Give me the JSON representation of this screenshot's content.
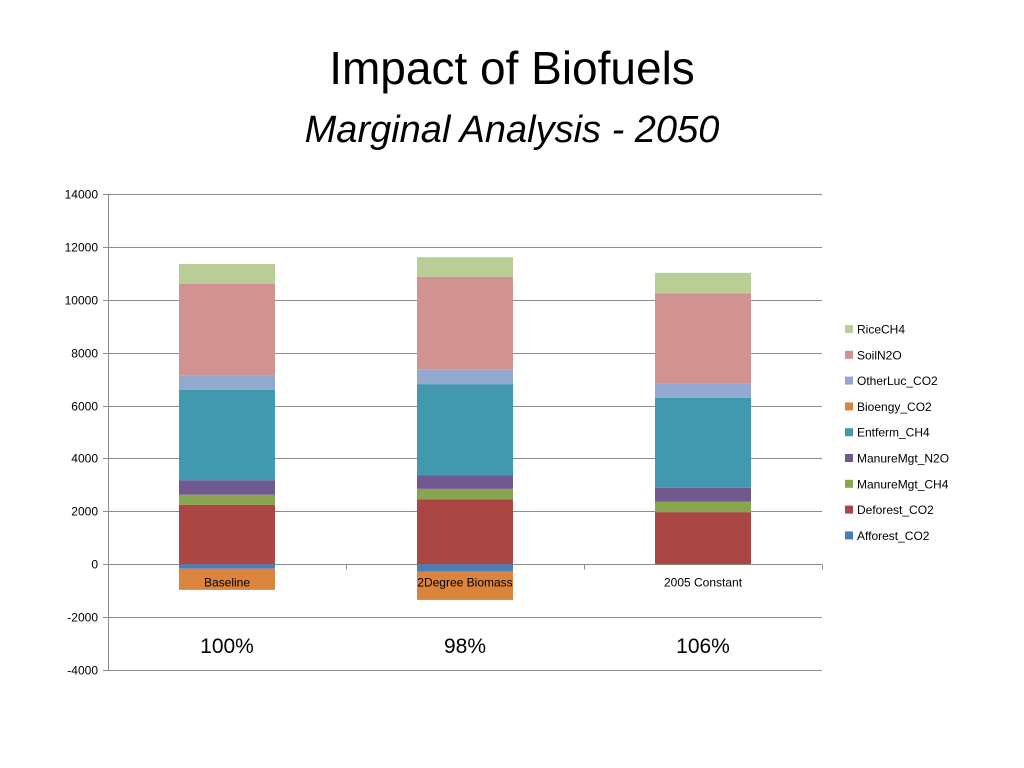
{
  "slide": {
    "title": "Impact of Biofuels",
    "subtitle": "Marginal Analysis - 2050"
  },
  "chart_data": {
    "type": "bar",
    "stacked": true,
    "title": "",
    "xlabel": "",
    "ylabel": "",
    "ylim": [
      -4000,
      14000
    ],
    "yticks": [
      -4000,
      -2000,
      0,
      2000,
      4000,
      6000,
      8000,
      10000,
      12000,
      14000
    ],
    "grid": true,
    "legend_position": "right",
    "categories": [
      "Baseline",
      "2Degree Biomass",
      "2005 Constant"
    ],
    "percent_labels": [
      "100%",
      "98%",
      "106%"
    ],
    "series": [
      {
        "name": "Afforest_CO2",
        "color": "#4a7ebb",
        "values": [
          -170,
          -280,
          0
        ]
      },
      {
        "name": "Deforest_CO2",
        "color": "#aa4643",
        "values": [
          2250,
          2450,
          1970
        ]
      },
      {
        "name": "ManureMgt_CH4",
        "color": "#89a54e",
        "values": [
          380,
          400,
          400
        ]
      },
      {
        "name": "ManureMgt_N2O",
        "color": "#71588f",
        "values": [
          540,
          520,
          520
        ]
      },
      {
        "name": "Entferm_CH4",
        "color": "#4198af",
        "values": [
          3420,
          3440,
          3400
        ]
      },
      {
        "name": "Bioengy_CO2",
        "color": "#db843d",
        "values": [
          -800,
          -1070,
          0
        ]
      },
      {
        "name": "OtherLuc_CO2",
        "color": "#93a9cf",
        "values": [
          540,
          560,
          550
        ]
      },
      {
        "name": "SoilN2O",
        "color": "#d19392",
        "values": [
          3480,
          3500,
          3400
        ]
      },
      {
        "name": "RiceCH4",
        "color": "#b9cd96",
        "values": [
          740,
          740,
          780
        ]
      }
    ]
  }
}
